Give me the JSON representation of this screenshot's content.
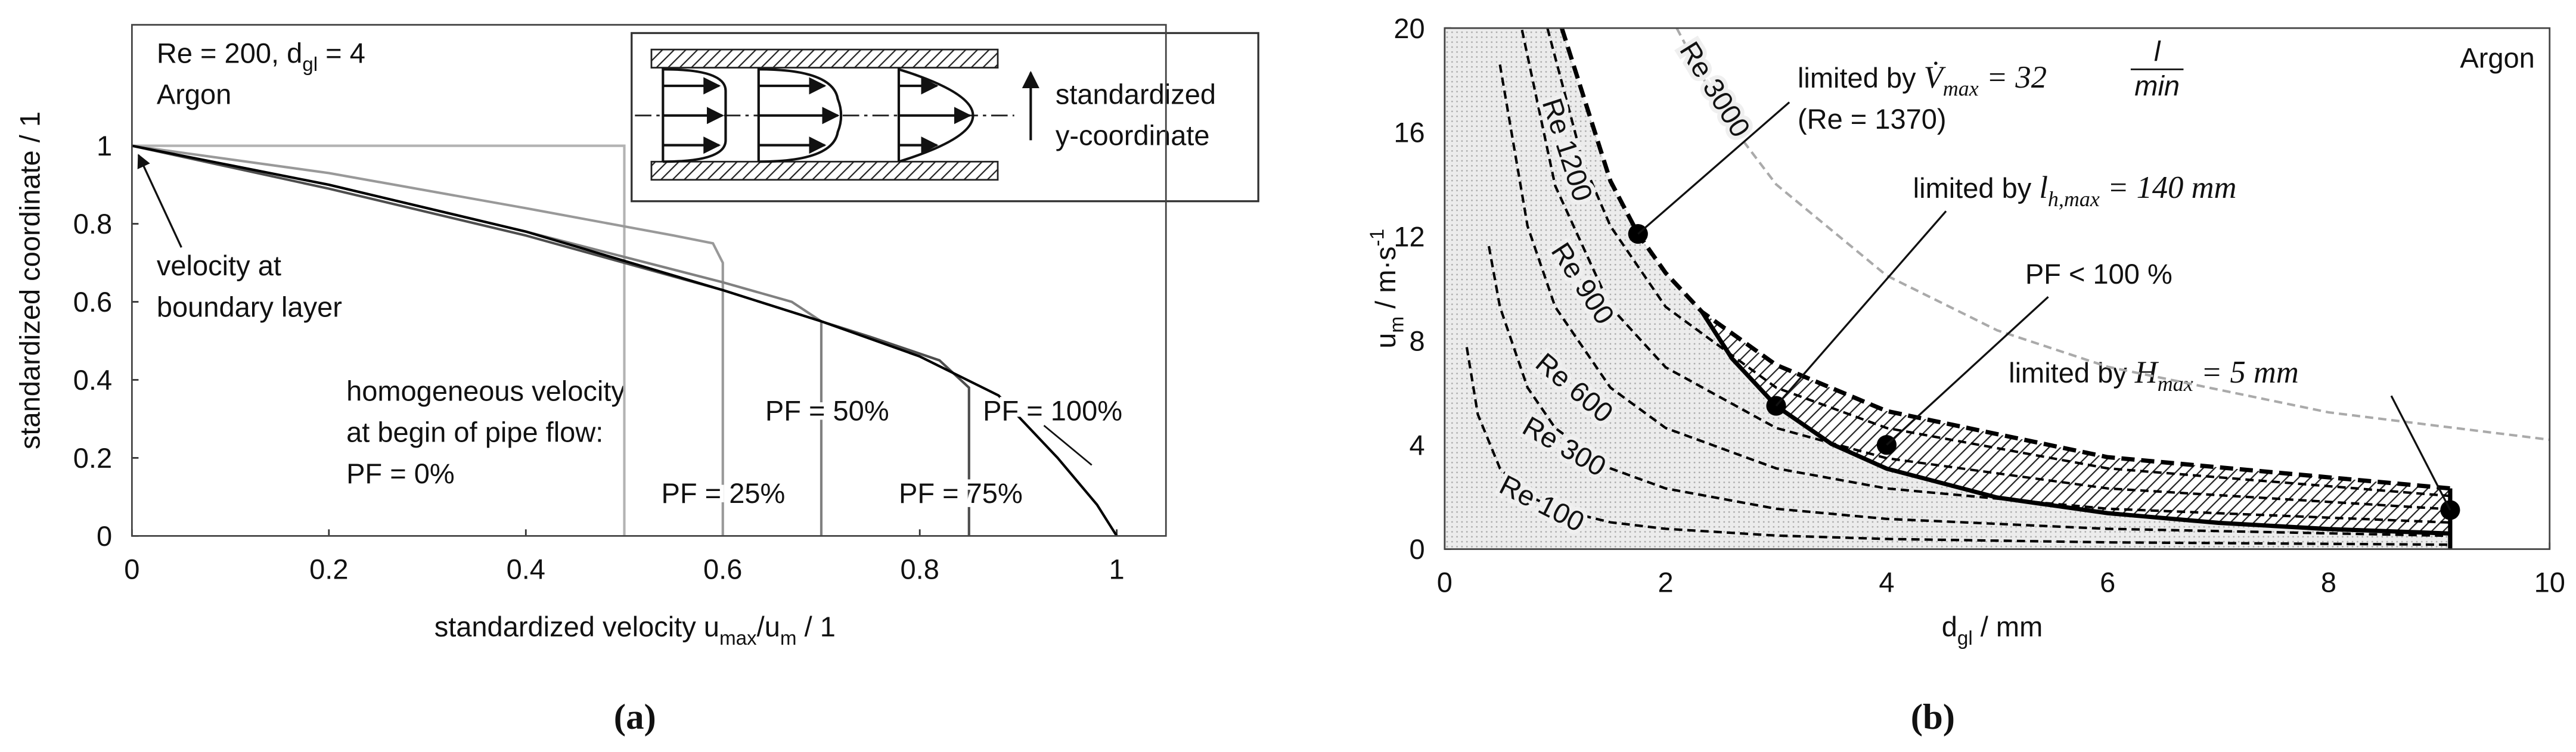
{
  "chart_data": [
    {
      "type": "line",
      "caption": "(a)",
      "xlabel": [
        "standardized velocity u",
        {
          "text": "max",
          "sub": true
        },
        "/u",
        {
          "text": "m",
          "sub": true
        },
        " / 1"
      ],
      "ylabel": [
        "standardized coordinate / 1"
      ],
      "xlim": [
        0,
        1.05
      ],
      "ylim": [
        0,
        1.31
      ],
      "xticks": [
        0,
        0.2,
        0.4,
        0.6,
        0.8,
        1
      ],
      "yticks": [
        0,
        0.2,
        0.4,
        0.6,
        0.8,
        1
      ],
      "notes": [
        {
          "lines": [
            [
              "Re = 200, d",
              {
                "text": "gl",
                "sub": true
              },
              " = 4"
            ],
            [
              "Argon"
            ]
          ]
        },
        {
          "lines": [
            [
              "velocity at"
            ],
            [
              "boundary layer"
            ]
          ]
        },
        {
          "lines": [
            [
              "homogeneous velocity"
            ],
            [
              "at begin of pipe flow:"
            ]
          ]
        },
        {
          "lines": [
            [
              "standardized"
            ],
            [
              "y-coordinate"
            ]
          ]
        }
      ],
      "series": [
        {
          "name": "PF = 0%",
          "color": "#b3b3b3",
          "x": [
            0,
            0.5,
            0.5
          ],
          "values": [
            1,
            1,
            0
          ]
        },
        {
          "name": "PF = 25%",
          "color": "#999999",
          "x": [
            0,
            0.2,
            0.4,
            0.55,
            0.59,
            0.6,
            0.6
          ],
          "values": [
            1,
            0.93,
            0.84,
            0.77,
            0.75,
            0.7,
            0
          ]
        },
        {
          "name": "PF = 50%",
          "color": "#808080",
          "x": [
            0,
            0.2,
            0.4,
            0.6,
            0.67,
            0.7,
            0.7
          ],
          "values": [
            1,
            0.9,
            0.78,
            0.65,
            0.6,
            0.55,
            0
          ]
        },
        {
          "name": "PF = 75%",
          "color": "#4d4d4d",
          "x": [
            0,
            0.2,
            0.4,
            0.6,
            0.75,
            0.82,
            0.85,
            0.85
          ],
          "values": [
            1,
            0.89,
            0.77,
            0.63,
            0.51,
            0.45,
            0.38,
            0
          ]
        },
        {
          "name": "PF = 100%",
          "color": "#000000",
          "x": [
            0,
            0.2,
            0.4,
            0.6,
            0.7,
            0.8,
            0.88,
            0.94,
            0.98,
            1
          ],
          "values": [
            1,
            0.9,
            0.78,
            0.63,
            0.55,
            0.46,
            0.36,
            0.2,
            0.08,
            0
          ]
        }
      ]
    },
    {
      "type": "line",
      "caption": "(b)",
      "xlabel": [
        "d",
        {
          "text": "gl",
          "sub": true
        },
        " / mm"
      ],
      "ylabel": [
        "u",
        {
          "text": "m",
          "sub": true
        },
        " / m·s",
        {
          "text": "-1",
          "sup": true
        }
      ],
      "xlim": [
        0,
        10
      ],
      "ylim": [
        0,
        20
      ],
      "xticks": [
        0,
        2,
        4,
        6,
        8,
        10
      ],
      "yticks": [
        0,
        4,
        8,
        12,
        16,
        20
      ],
      "notes": [
        {
          "lines": [
            [
              "Argon"
            ]
          ]
        },
        {
          "lines": [
            [
              "limited by ",
              {
                "text": "V̇",
                "math": true
              },
              {
                "text": "max",
                "sub": true,
                "math": true
              },
              {
                "text": " = 32",
                "math": true
              }
            ],
            [
              "(Re = 1370)"
            ]
          ],
          "fraction": {
            "num": "l",
            "den": "min"
          }
        },
        {
          "lines": [
            [
              "limited by ",
              {
                "text": "l",
                "math": true
              },
              {
                "text": "h,max",
                "sub": true,
                "math": true
              },
              {
                "text": " = 140 mm",
                "math": true
              }
            ]
          ]
        },
        {
          "lines": [
            [
              "PF < 100 %"
            ]
          ]
        },
        {
          "lines": [
            [
              "limited by ",
              {
                "text": "H",
                "math": true
              },
              {
                "text": "max",
                "sub": true,
                "math": true
              },
              {
                "text": " = 5 mm",
                "math": true
              }
            ]
          ]
        }
      ],
      "series": [
        {
          "name": "Re 100",
          "color": "#000000",
          "style": "dashed",
          "x": [
            0.2,
            0.3,
            0.5,
            0.75,
            1,
            1.5,
            2,
            3,
            4,
            6,
            9.1
          ],
          "values": [
            7.75,
            5.17,
            3.1,
            2.07,
            1.55,
            1.03,
            0.78,
            0.52,
            0.39,
            0.26,
            0.17
          ]
        },
        {
          "name": "Re 300",
          "color": "#000000",
          "style": "dashed",
          "x": [
            0.4,
            0.5,
            0.75,
            1,
            1.5,
            2,
            3,
            4,
            6,
            9.1
          ],
          "values": [
            11.63,
            9.3,
            6.2,
            4.65,
            3.1,
            2.33,
            1.55,
            1.16,
            0.78,
            0.51
          ]
        },
        {
          "name": "Re 600",
          "color": "#000000",
          "style": "dashed",
          "x": [
            0.5,
            0.75,
            1,
            1.5,
            2,
            3,
            4,
            6,
            9.1
          ],
          "values": [
            18.6,
            12.4,
            9.3,
            6.2,
            4.65,
            3.1,
            2.33,
            1.55,
            1.02
          ]
        },
        {
          "name": "Re 900",
          "color": "#000000",
          "style": "dashed",
          "x": [
            0.7,
            1,
            1.5,
            2,
            3,
            4,
            6,
            9.1
          ],
          "values": [
            19.93,
            13.95,
            9.3,
            6.98,
            4.65,
            3.49,
            2.33,
            1.53
          ]
        },
        {
          "name": "Re 1200",
          "color": "#000000",
          "style": "dashed",
          "x": [
            0.93,
            1.25,
            1.5,
            2,
            3,
            4,
            6,
            9.1
          ],
          "values": [
            20,
            14.88,
            12.4,
            9.3,
            6.2,
            4.65,
            3.1,
            2.04
          ]
        },
        {
          "name": "Re 3000",
          "color": "#aaaaaa",
          "style": "dashed",
          "x": [
            2.1,
            2.5,
            3,
            4,
            5,
            6,
            8,
            10
          ],
          "values": [
            20,
            16.8,
            14,
            10.5,
            8.4,
            7,
            5.25,
            4.2
          ]
        },
        {
          "color": "#000000",
          "style": "bold-dashed",
          "x": [
            1.06,
            1.5,
            1.75,
            2,
            2.33,
            3,
            4,
            6,
            9.1
          ],
          "values": [
            20,
            14.13,
            12.1,
            10.6,
            9.1,
            7.07,
            5.3,
            3.53,
            2.33
          ]
        },
        {
          "color": "#000000",
          "style": "bold",
          "x": [
            2.33,
            2.6,
            3,
            3.5,
            4,
            5,
            6,
            7,
            8,
            9.1
          ],
          "values": [
            9.1,
            7.32,
            5.5,
            4.04,
            3.09,
            1.98,
            1.38,
            1.01,
            0.77,
            0.6
          ]
        },
        {
          "color": "#000000",
          "style": "bold",
          "x": [
            9.1,
            9.1
          ],
          "values": [
            0,
            2.33
          ]
        }
      ],
      "points": {
        "color": "#000000",
        "x": [
          1.75,
          3,
          4,
          9.1
        ],
        "values": [
          12.1,
          5.5,
          4,
          1.5
        ]
      }
    }
  ]
}
